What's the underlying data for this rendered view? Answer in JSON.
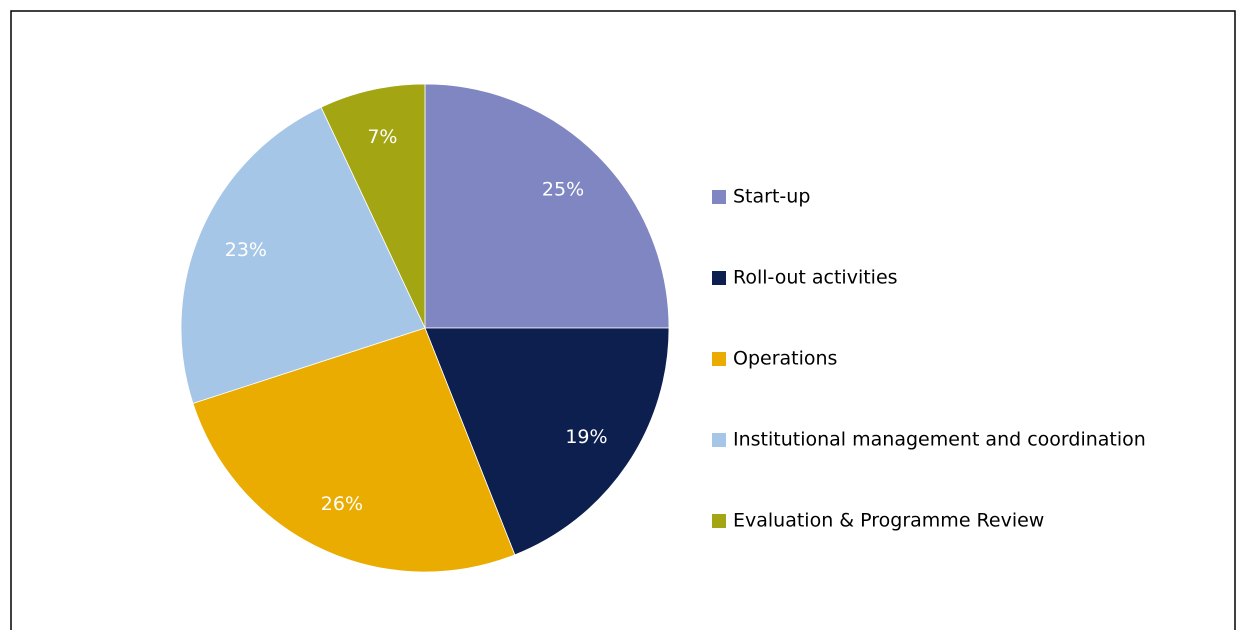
{
  "chart_data": {
    "type": "pie",
    "categories": [
      "Start-up",
      "Roll-out activities",
      "Operations",
      "Institutional management and coordination",
      "Evaluation & Programme Review"
    ],
    "values": [
      25,
      19,
      26,
      23,
      7
    ],
    "value_labels": [
      "25%",
      "19%",
      "26%",
      "23%",
      "7%"
    ],
    "colors": [
      "#7f86c2",
      "#0c1f4f",
      "#eaac00",
      "#a6c6e8",
      "#a3a512"
    ],
    "legend": "right"
  }
}
